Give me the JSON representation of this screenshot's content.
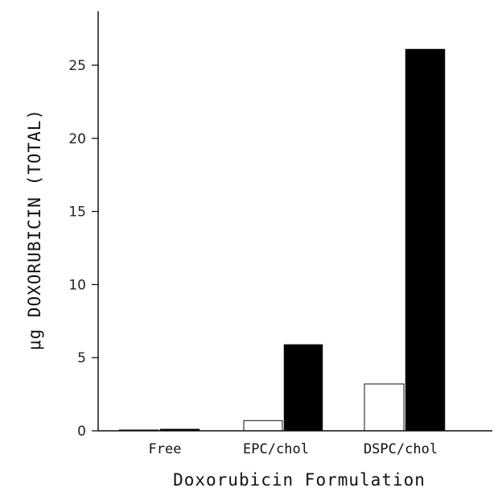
{
  "chart_data": {
    "type": "bar",
    "categories": [
      "Free",
      "EPC/chol",
      "DSPC/chol"
    ],
    "series": [
      {
        "values": [
          0.05,
          0.7,
          3.2
        ],
        "color": "#ffffff"
      },
      {
        "values": [
          0.12,
          5.9,
          26.1
        ],
        "color": "#000000"
      }
    ],
    "ylabel": "μg DOXORUBICIN (TOTAL)",
    "xlabel": "Doxorubicin Formulation",
    "ylim": [
      0,
      28
    ],
    "yticks": [
      0,
      5,
      10,
      15,
      20,
      25
    ],
    "grid": false
  }
}
